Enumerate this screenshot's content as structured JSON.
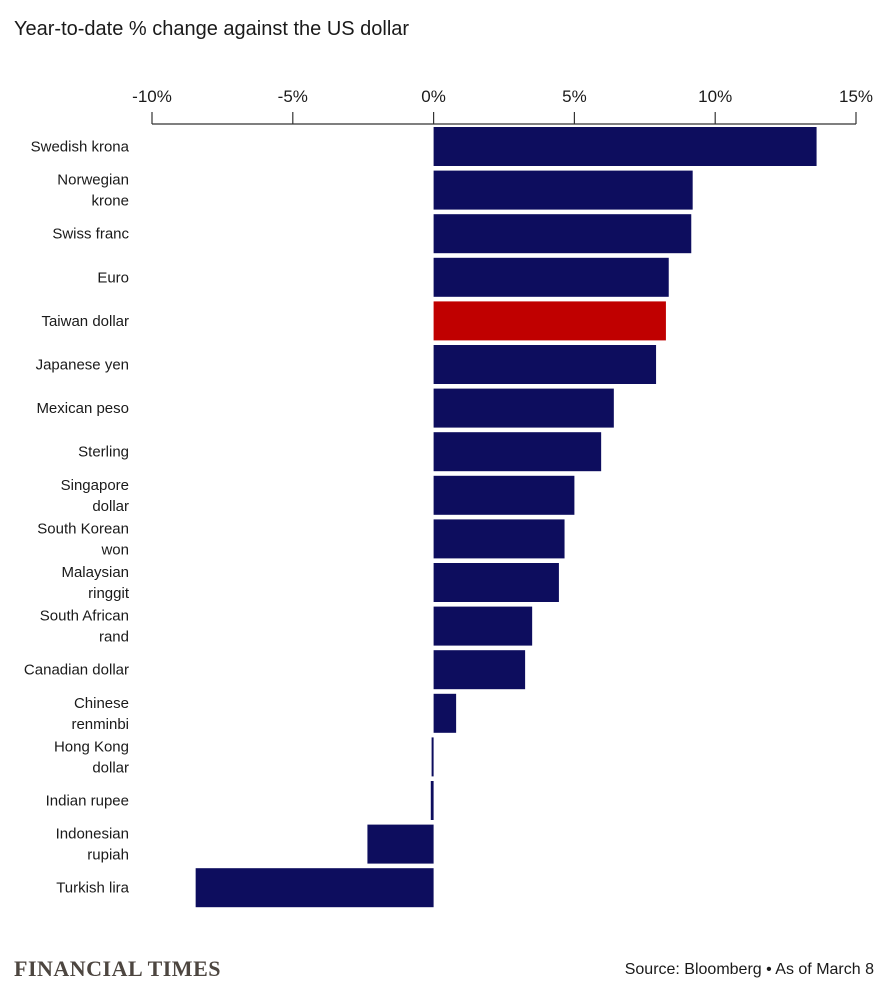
{
  "header": {
    "title": "Year-to-date % change against the US dollar"
  },
  "footer": {
    "logo_text": "FINANCIAL TIMES",
    "source": "Source: Bloomberg • As of March 8"
  },
  "colors": {
    "bar": "#0d0d5e",
    "highlight": "#c00000",
    "axis": "#333333"
  },
  "chart_data": {
    "type": "bar",
    "orientation": "horizontal",
    "xlim": [
      -10,
      15
    ],
    "xticks": [
      {
        "value": -10,
        "label": "-10%"
      },
      {
        "value": -5,
        "label": "-5%"
      },
      {
        "value": 0,
        "label": "0%"
      },
      {
        "value": 5,
        "label": "5%"
      },
      {
        "value": 10,
        "label": "10%"
      },
      {
        "value": 15,
        "label": "15%"
      }
    ],
    "categories": [
      [
        "Swedish krona"
      ],
      [
        "Norwegian",
        "krone"
      ],
      [
        "Swiss franc"
      ],
      [
        "Euro"
      ],
      [
        "Taiwan dollar"
      ],
      [
        "Japanese yen"
      ],
      [
        "Mexican peso"
      ],
      [
        "Sterling"
      ],
      [
        "Singapore",
        "dollar"
      ],
      [
        "South Korean",
        "won"
      ],
      [
        "Malaysian",
        "ringgit"
      ],
      [
        "South African",
        "rand"
      ],
      [
        "Canadian dollar"
      ],
      [
        "Chinese",
        "renminbi"
      ],
      [
        "Hong Kong",
        "dollar"
      ],
      [
        "Indian rupee"
      ],
      [
        "Indonesian",
        "rupiah"
      ],
      [
        "Turkish lira"
      ]
    ],
    "values": [
      13.6,
      9.2,
      9.15,
      8.35,
      8.25,
      7.9,
      6.4,
      5.95,
      5.0,
      4.65,
      4.45,
      3.5,
      3.25,
      0.8,
      -0.05,
      -0.1,
      -2.35,
      -8.45
    ],
    "highlight_index": 4
  }
}
